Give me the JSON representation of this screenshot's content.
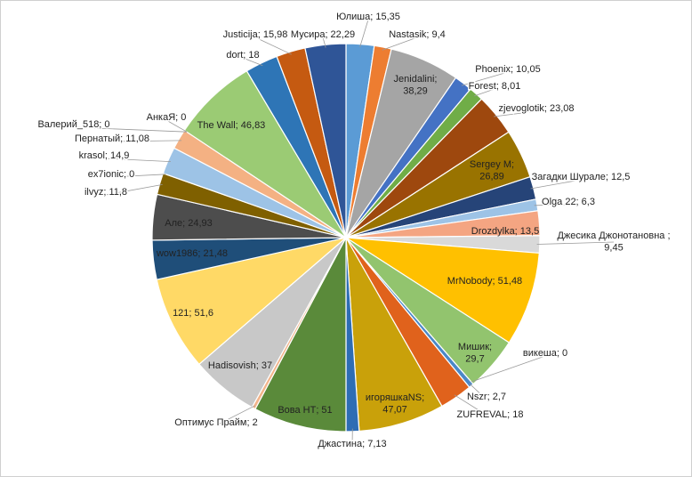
{
  "chart_data": {
    "type": "pie",
    "title": "",
    "slices": [
      {
        "name": "Юлиша",
        "value": 15.35,
        "display": "Юлиша; 15,35",
        "color": "#5B9BD5"
      },
      {
        "name": "Nastasik",
        "value": 9.4,
        "display": "Nastasik; 9,4",
        "color": "#ED7D31"
      },
      {
        "name": "Jenidalini",
        "value": 38.29,
        "display": "Jenidalini;|38,29",
        "color": "#A5A5A5"
      },
      {
        "name": "Phoenix",
        "value": 10.05,
        "display": "Phoenix; 10,05",
        "color": "#4472C4"
      },
      {
        "name": "Forest",
        "value": 8.01,
        "display": "Forest; 8,01",
        "color": "#70AD47"
      },
      {
        "name": "zjevoglotik",
        "value": 23.08,
        "display": "zjevoglotik; 23,08",
        "color": "#9E480E"
      },
      {
        "name": "Sergey M",
        "value": 26.89,
        "display": "Sergey M;|26,89",
        "color": "#997300"
      },
      {
        "name": "Загадки Шурале",
        "value": 12.5,
        "display": "Загадки Шурале; 12,5",
        "color": "#264478"
      },
      {
        "name": "Olga 22",
        "value": 6.3,
        "display": "Olga 22; 6,3",
        "color": "#9DC3E6"
      },
      {
        "name": "Drozdylka",
        "value": 13.5,
        "display": "Drozdylka; 13,5",
        "color": "#F4A582"
      },
      {
        "name": "Джесика Джонотановна",
        "value": 9.45,
        "display": "Джесика Джонотановна ;|9,45",
        "color": "#D9D9D9"
      },
      {
        "name": "MrNobody",
        "value": 51.48,
        "display": "MrNobody; 51,48",
        "color": "#FFC000"
      },
      {
        "name": "Мишик",
        "value": 29.7,
        "display": "Мишик;|29,7",
        "color": "#92C46E"
      },
      {
        "name": "викеша",
        "value": 0,
        "display": "викеша; 0",
        "color": "#A9D18E"
      },
      {
        "name": "Nszr",
        "value": 2.7,
        "display": "Nszr; 2,7",
        "color": "#4A88C7"
      },
      {
        "name": "ZUFREVAL",
        "value": 18,
        "display": "ZUFREVAL; 18",
        "color": "#E0621C"
      },
      {
        "name": "игоряшкаNS",
        "value": 47.07,
        "display": "игоряшкаNS;|47,07",
        "color": "#C9A10A"
      },
      {
        "name": "Джастина",
        "value": 7.13,
        "display": "Джастина; 7,13",
        "color": "#2E6DB4"
      },
      {
        "name": "Вова НТ",
        "value": 51,
        "display": "Вова НТ; 51",
        "color": "#5A8A3A"
      },
      {
        "name": "Оптимус Прайм",
        "value": 2,
        "display": "Оптимус Прайм; 2",
        "color": "#F2B48A"
      },
      {
        "name": "Hadisovish",
        "value": 37,
        "display": "Hadisovish; 37",
        "color": "#C8C8C8"
      },
      {
        "name": "121",
        "value": 51.6,
        "display": "121; 51,6",
        "color": "#FFD966"
      },
      {
        "name": "wow1986",
        "value": 21.48,
        "display": "wow1986; 21,48",
        "color": "#1F4E79"
      },
      {
        "name": "Але",
        "value": 24.93,
        "display": "Але; 24,93",
        "color": "#4D4D4D"
      },
      {
        "name": "ilvyz",
        "value": 11.8,
        "display": "ilvyz; 11,8",
        "color": "#7F6000"
      },
      {
        "name": "ex7ionic",
        "value": 0,
        "display": "ex7ionic; 0",
        "color": "#8FAADC"
      },
      {
        "name": "krasol",
        "value": 14.9,
        "display": "krasol; 14,9",
        "color": "#9DC3E6"
      },
      {
        "name": "Пернатый",
        "value": 11.08,
        "display": "Пернатый; 11,08",
        "color": "#F4B183"
      },
      {
        "name": "Валерий_518",
        "value": 0,
        "display": "Валерий_518; 0",
        "color": "#BFBFBF"
      },
      {
        "name": "АнкаЯ",
        "value": 0,
        "display": "АнкаЯ; 0",
        "color": "#FFE699"
      },
      {
        "name": "The Wall",
        "value": 46.83,
        "display": "The Wall; 46,83",
        "color": "#9BCB74"
      },
      {
        "name": "dort",
        "value": 18,
        "display": "dort; 18",
        "color": "#2E75B6"
      },
      {
        "name": "Justicija",
        "value": 15.98,
        "display": "Justicija; 15,98",
        "color": "#C55A11"
      },
      {
        "name": "Мусира",
        "value": 22.29,
        "display": "Мусира; 22,29",
        "color": "#2F5597"
      }
    ]
  }
}
